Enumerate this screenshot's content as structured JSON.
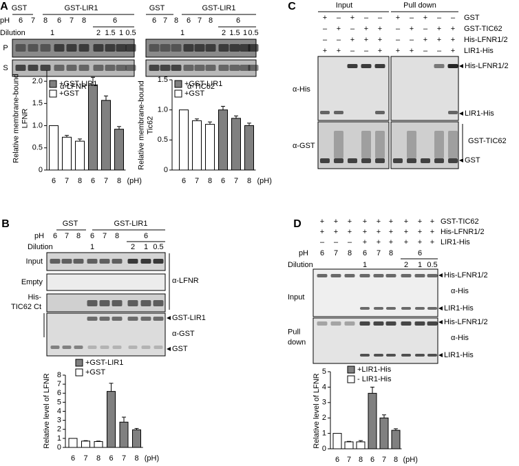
{
  "panel_a": {
    "letter": "A",
    "ph_label": "pH",
    "dilution_label": "Dilution",
    "rows": [
      "P",
      "S"
    ],
    "blots": [
      {
        "groups": [
          "GST",
          "GST-LIR1"
        ],
        "ph": [
          "6",
          "7",
          "8",
          "6",
          "7",
          "8",
          "6"
        ],
        "dilutions": [
          "1",
          "2",
          "1.5",
          "1",
          "0.5"
        ],
        "antibody": "α-LFNR"
      },
      {
        "groups": [
          "GST",
          "GST-LIR1"
        ],
        "ph": [
          "6",
          "7",
          "8",
          "6",
          "7",
          "8",
          "6"
        ],
        "dilutions": [
          "1",
          "2",
          "1.5",
          "1",
          "0.5"
        ],
        "antibody": "α-TIC62"
      }
    ]
  },
  "panel_b": {
    "letter": "B",
    "groups": [
      "GST",
      "GST-LIR1"
    ],
    "ph_label": "pH",
    "ph": [
      "6",
      "7",
      "8",
      "6",
      "7",
      "8",
      "6"
    ],
    "dilution_label": "Dilution",
    "dilutions": [
      "1",
      "2",
      "1",
      "0.5"
    ],
    "rows": [
      "Input",
      "Empty"
    ],
    "his_row": [
      "His-",
      "TIC62 Ct"
    ],
    "antibody_lfnr": "α-LFNR",
    "antibody_gst": "α-GST",
    "bands": [
      "GST-LIR1",
      "GST"
    ]
  },
  "panel_c": {
    "letter": "C",
    "groups": [
      "Input",
      "Pull down"
    ],
    "sign_rows": [
      {
        "label": "GST",
        "signs": [
          "+",
          "–",
          "+",
          "–",
          "–",
          "+",
          "–",
          "+",
          "–",
          "–"
        ]
      },
      {
        "label": "GST-TIC62",
        "signs": [
          "–",
          "+",
          "–",
          "+",
          "+",
          "–",
          "+",
          "–",
          "+",
          "+"
        ]
      },
      {
        "label": "His-LFNR1/2",
        "signs": [
          "–",
          "–",
          "+",
          "+",
          "+",
          "–",
          "–",
          "+",
          "+",
          "+"
        ]
      },
      {
        "label": "LIR1-His",
        "signs": [
          "+",
          "+",
          "–",
          "–",
          "+",
          "+",
          "+",
          "–",
          "–",
          "+"
        ]
      }
    ],
    "antibodies": [
      "α-His",
      "α-GST"
    ],
    "bands": [
      "His-LFNR1/2",
      "LIR1-His",
      "GST-TIC62",
      "GST"
    ]
  },
  "panel_d": {
    "letter": "D",
    "sign_rows": [
      {
        "label": "GST-TIC62",
        "signs": [
          "+",
          "+",
          "+",
          "+",
          "+",
          "+",
          "+",
          "+",
          "+"
        ]
      },
      {
        "label": "His-LFNR1/2",
        "signs": [
          "+",
          "+",
          "+",
          "+",
          "+",
          "+",
          "+",
          "+",
          "+"
        ]
      },
      {
        "label": "LIR1-His",
        "signs": [
          "–",
          "–",
          "–",
          "+",
          "+",
          "+",
          "+",
          "+",
          "+"
        ]
      }
    ],
    "ph_label": "pH",
    "ph": [
      "6",
      "7",
      "8",
      "6",
      "7",
      "8",
      "6"
    ],
    "dilution_label": "Dilution",
    "dilutions": [
      "1",
      "2",
      "1",
      "0.5"
    ],
    "input_label": "Input",
    "pulldown_label": [
      "Pull",
      "down"
    ],
    "antibody": "α-His",
    "bands": [
      "His-LFNR1/2",
      "LIR1-His",
      "His-LFNR1/2",
      "LIR1-His"
    ]
  },
  "chart_data": [
    {
      "type": "bar",
      "ylabel": [
        "Relative membrane-bound",
        "LFNR"
      ],
      "xlabel": "(pH)",
      "categories": [
        "6",
        "7",
        "8",
        "6",
        "7",
        "8"
      ],
      "ylim": [
        0,
        2.25
      ],
      "yticks": [
        0,
        0.5,
        {
          "value": 1,
          "label": "1.0"
        },
        1.5,
        {
          "value": 2,
          "label": "2.0"
        }
      ],
      "series": [
        {
          "name": "+GST-LIR1",
          "color": "#808080",
          "values": [
            null,
            null,
            null,
            1.92,
            1.57,
            0.92
          ],
          "errors": [
            null,
            null,
            null,
            0.17,
            0.1,
            0.06
          ]
        },
        {
          "name": "+GST",
          "color": "#ffffff",
          "values": [
            1,
            0.74,
            0.65,
            null,
            null,
            null
          ],
          "errors": [
            null,
            0.04,
            0.05,
            null,
            null,
            null
          ]
        }
      ]
    },
    {
      "type": "bar",
      "ylabel": [
        "Relative membrane-bound",
        "Tic62"
      ],
      "xlabel": "(pH)",
      "categories": [
        "6",
        "7",
        "8",
        "6",
        "7",
        "8"
      ],
      "ylim": [
        0,
        1.5
      ],
      "yticks": [
        0,
        0.5,
        {
          "value": 1,
          "label": "1.0"
        },
        1.5
      ],
      "series": [
        {
          "name": "+GST-LIR1",
          "color": "#808080",
          "values": [
            null,
            null,
            null,
            1,
            0.86,
            0.74
          ],
          "errors": [
            null,
            null,
            null,
            0.06,
            0.04,
            0.04
          ]
        },
        {
          "name": "+GST",
          "color": "#ffffff",
          "values": [
            1,
            0.82,
            0.76,
            null,
            null,
            null
          ],
          "errors": [
            null,
            0.03,
            0.04,
            null,
            null,
            null
          ]
        }
      ]
    },
    {
      "type": "bar",
      "ylabel": [
        "Relative level of LFNR"
      ],
      "xlabel": "(pH)",
      "categories": [
        "6",
        "7",
        "8",
        "6",
        "7",
        "8"
      ],
      "ylim": [
        0,
        8
      ],
      "yticks": [
        0,
        1,
        2,
        3,
        4,
        5,
        6,
        7,
        8
      ],
      "series": [
        {
          "name": "+GST-LIR1",
          "color": "#808080",
          "values": [
            null,
            null,
            null,
            6.2,
            2.8,
            1.95
          ],
          "errors": [
            null,
            null,
            null,
            0.9,
            0.55,
            0.15
          ]
        },
        {
          "name": "+GST",
          "color": "#ffffff",
          "values": [
            1,
            0.7,
            0.65,
            null,
            null,
            null
          ],
          "errors": [
            null,
            0.05,
            0.05,
            null,
            null,
            null
          ]
        }
      ]
    },
    {
      "type": "bar",
      "ylabel": [
        "Relative level of LFNR"
      ],
      "xlabel": "(pH)",
      "categories": [
        "6",
        "7",
        "8",
        "6",
        "7",
        "8"
      ],
      "ylim": [
        0,
        5
      ],
      "yticks": [
        0,
        1,
        2,
        3,
        4,
        5
      ],
      "series": [
        {
          "name": "+LIR1-His",
          "color": "#808080",
          "values": [
            null,
            null,
            null,
            3.6,
            2,
            1.2
          ],
          "errors": [
            null,
            null,
            null,
            0.4,
            0.2,
            0.1
          ]
        },
        {
          "name": "- LIR1-His",
          "color": "#ffffff",
          "values": [
            1,
            0.45,
            0.45,
            null,
            null,
            null
          ],
          "errors": [
            null,
            0.03,
            0.08,
            null,
            null,
            null
          ]
        }
      ]
    }
  ]
}
